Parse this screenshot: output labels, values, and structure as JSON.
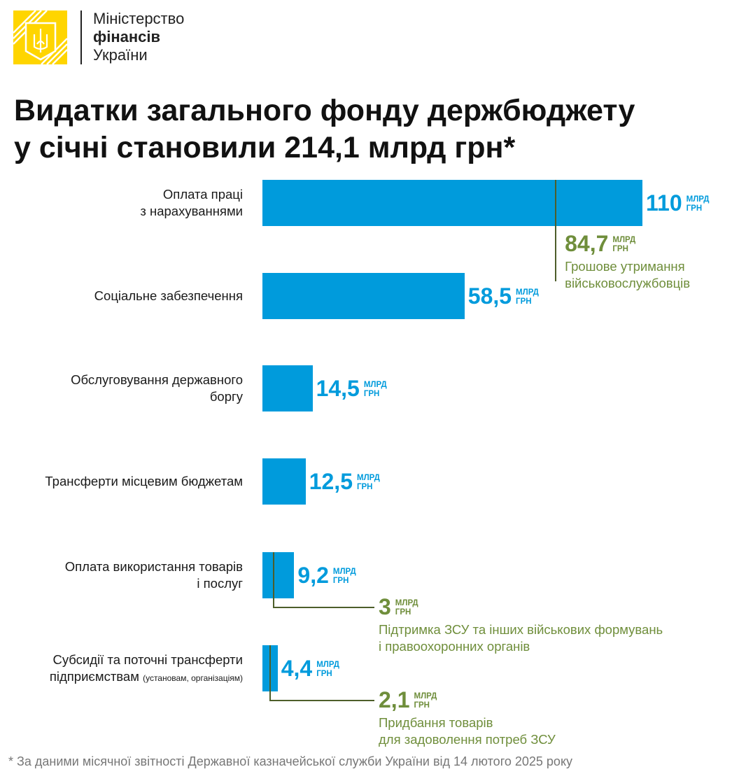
{
  "header": {
    "org_line1": "Міністерство",
    "org_line2": "фінансів",
    "org_line3": "України",
    "title_line1": "Видатки загального фонду держбюджету",
    "title_line2": "у січні становили 214,1 млрд грн*"
  },
  "colors": {
    "bar": "#009bdc",
    "sub": "#6f8e3b",
    "logo": "#ffd500"
  },
  "chart_data": {
    "type": "bar",
    "orientation": "horizontal",
    "unit_line1": "МЛРД",
    "unit_line2": "ГРН",
    "categories": [
      {
        "label_lines": [
          "Оплата праці",
          "з нарахуваннями"
        ],
        "label_note": ""
      },
      {
        "label_lines": [
          "Соціальне забезпечення"
        ],
        "label_note": ""
      },
      {
        "label_lines": [
          "Обслуговування державного",
          "боргу"
        ],
        "label_note": ""
      },
      {
        "label_lines": [
          "Трансферти місцевим бюджетам"
        ],
        "label_note": ""
      },
      {
        "label_lines": [
          "Оплата використання товарів",
          "і послуг"
        ],
        "label_note": ""
      },
      {
        "label_lines": [
          "Субсидії та поточні трансферти",
          "підприємствам"
        ],
        "label_note": "(установам, організаціям)"
      }
    ],
    "values": [
      110,
      58.5,
      14.5,
      12.5,
      9.2,
      4.4
    ],
    "value_labels": [
      "110",
      "58,5",
      "14,5",
      "12,5",
      "9,2",
      "4,4"
    ],
    "sub_values": [
      {
        "category_index": 0,
        "value": 84.7,
        "label": "84,7",
        "desc_lines": [
          "Грошове утримання",
          "військовослужбовців"
        ]
      },
      {
        "category_index": 4,
        "value": 3,
        "label": "3",
        "desc_lines": [
          "Підтримка ЗСУ та інших військових формувань",
          "і правоохоронних органів"
        ]
      },
      {
        "category_index": 5,
        "value": 2.1,
        "label": "2,1",
        "desc_lines": [
          "Придбання товарів",
          "для задоволення потреб ЗСУ"
        ]
      }
    ],
    "xlim": [
      0,
      110
    ]
  },
  "footnote": "* За даними місячної звітності Державної казначейської служби України від 14 лютого 2025 року"
}
